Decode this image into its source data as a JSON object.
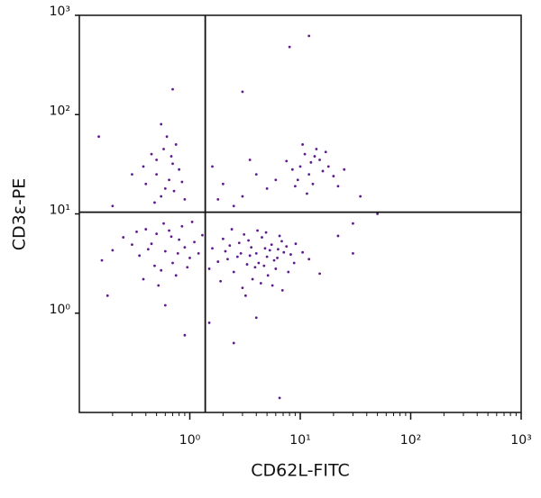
{
  "chart_data": {
    "type": "scatter",
    "x_label": "CD62L-FITC",
    "y_label": "CD3ε-PE",
    "color": "#5e1a8e",
    "xscale": "log",
    "yscale": "log",
    "xlim": [
      0.1,
      1000
    ],
    "ylim": [
      0.1,
      1000
    ],
    "xticks": [
      {
        "value": 1,
        "label": "10⁰"
      },
      {
        "value": 10,
        "label": "10¹"
      },
      {
        "value": 100,
        "label": "10²"
      },
      {
        "value": 1000,
        "label": "10³"
      }
    ],
    "xminorticks": [
      0.2,
      0.3,
      0.4,
      0.5,
      0.6,
      0.7,
      0.8,
      0.9,
      2,
      3,
      4,
      5,
      6,
      7,
      8,
      9,
      20,
      30,
      40,
      50,
      60,
      70,
      80,
      90,
      200,
      300,
      400,
      500,
      600,
      700,
      800,
      900
    ],
    "yticks": [
      {
        "value": 1,
        "label": "10⁰"
      },
      {
        "value": 10,
        "label": "10¹"
      },
      {
        "value": 100,
        "label": "10²"
      },
      {
        "value": 1000,
        "label": "10³"
      }
    ],
    "gates": {
      "x": 1.38,
      "y": 10.4
    },
    "x": [
      2.1,
      3.5,
      4.8,
      6.2,
      2.8,
      3.9,
      5.5,
      7.1,
      1.8,
      2.5,
      4.2,
      5.1,
      6.8,
      3.1,
      4.5,
      8.2,
      2.3,
      3.3,
      5.8,
      4.0,
      2.0,
      6.0,
      7.5,
      3.7,
      4.9,
      1.6,
      2.7,
      5.3,
      9.1,
      3.0,
      4.4,
      6.5,
      2.4,
      3.6,
      5.0,
      7.8,
      1.5,
      2.9,
      4.7,
      6.3,
      3.4,
      5.6,
      8.8,
      2.2,
      4.1,
      10.5,
      12,
      1.9,
      3.2,
      6.9,
      0.45,
      0.6,
      0.8,
      0.35,
      0.5,
      0.7,
      0.9,
      0.4,
      0.55,
      1.1,
      0.3,
      0.65,
      0.75,
      1.0,
      0.25,
      0.48,
      0.85,
      1.2,
      0.38,
      0.58,
      0.2,
      0.95,
      0.68,
      0.42,
      1.3,
      0.52,
      0.33,
      0.78,
      0.16,
      1.05,
      0.5,
      0.6,
      0.7,
      0.45,
      0.55,
      0.65,
      0.8,
      0.4,
      0.58,
      0.72,
      0.5,
      0.62,
      0.48,
      0.85,
      0.38,
      0.68,
      0.55,
      0.9,
      0.3,
      0.75,
      10,
      12,
      15,
      8.5,
      11,
      13,
      18,
      9.5,
      14,
      16,
      12.5,
      20,
      10.5,
      7.5,
      22,
      13.5,
      11.5,
      25,
      17,
      9,
      2,
      3,
      4,
      5,
      1.6,
      6,
      2.5,
      3.5,
      1.8,
      0.2,
      0.15,
      0.7,
      8,
      12,
      3,
      30,
      35,
      50,
      0.9,
      6.5,
      2.5,
      1.5,
      4,
      0.6,
      0.18,
      15,
      30,
      22
    ],
    "values": [
      4.2,
      3.8,
      4.5,
      3.6,
      5.1,
      2.9,
      4.9,
      4.1,
      3.3,
      2.6,
      3.2,
      2.4,
      5.3,
      6.2,
      5.8,
      3.9,
      4.8,
      3.1,
      3.4,
      4.0,
      5.6,
      2.8,
      4.7,
      2.2,
      6.5,
      4.5,
      3.7,
      4.3,
      5.0,
      1.8,
      2.0,
      6.0,
      7.0,
      4.6,
      3.7,
      2.6,
      2.8,
      4.0,
      3.0,
      4.4,
      5.4,
      1.9,
      3.2,
      3.5,
      6.8,
      4.1,
      3.5,
      2.1,
      1.5,
      1.7,
      5.0,
      4.2,
      5.5,
      3.8,
      6.3,
      3.2,
      4.6,
      7.0,
      2.7,
      5.2,
      4.9,
      6.8,
      2.4,
      3.6,
      5.8,
      3.0,
      7.5,
      4.0,
      2.2,
      8.0,
      4.3,
      2.9,
      5.9,
      4.4,
      6.1,
      1.9,
      6.6,
      4.0,
      3.4,
      8.3,
      25,
      18,
      32,
      40,
      15,
      22,
      28,
      20,
      45,
      17,
      35,
      60,
      13,
      21,
      30,
      38,
      80,
      14,
      25,
      50,
      30,
      25,
      35,
      28,
      40,
      20,
      30,
      22,
      45,
      27,
      33,
      24,
      50,
      34,
      19,
      38,
      16,
      28,
      42,
      19,
      20,
      15,
      25,
      18,
      30,
      22,
      12,
      35,
      14,
      12,
      60,
      180,
      480,
      620,
      170,
      8,
      15,
      10,
      0.6,
      0.14,
      0.5,
      0.8,
      0.9,
      1.2,
      1.5,
      2.5,
      4,
      6
    ]
  }
}
